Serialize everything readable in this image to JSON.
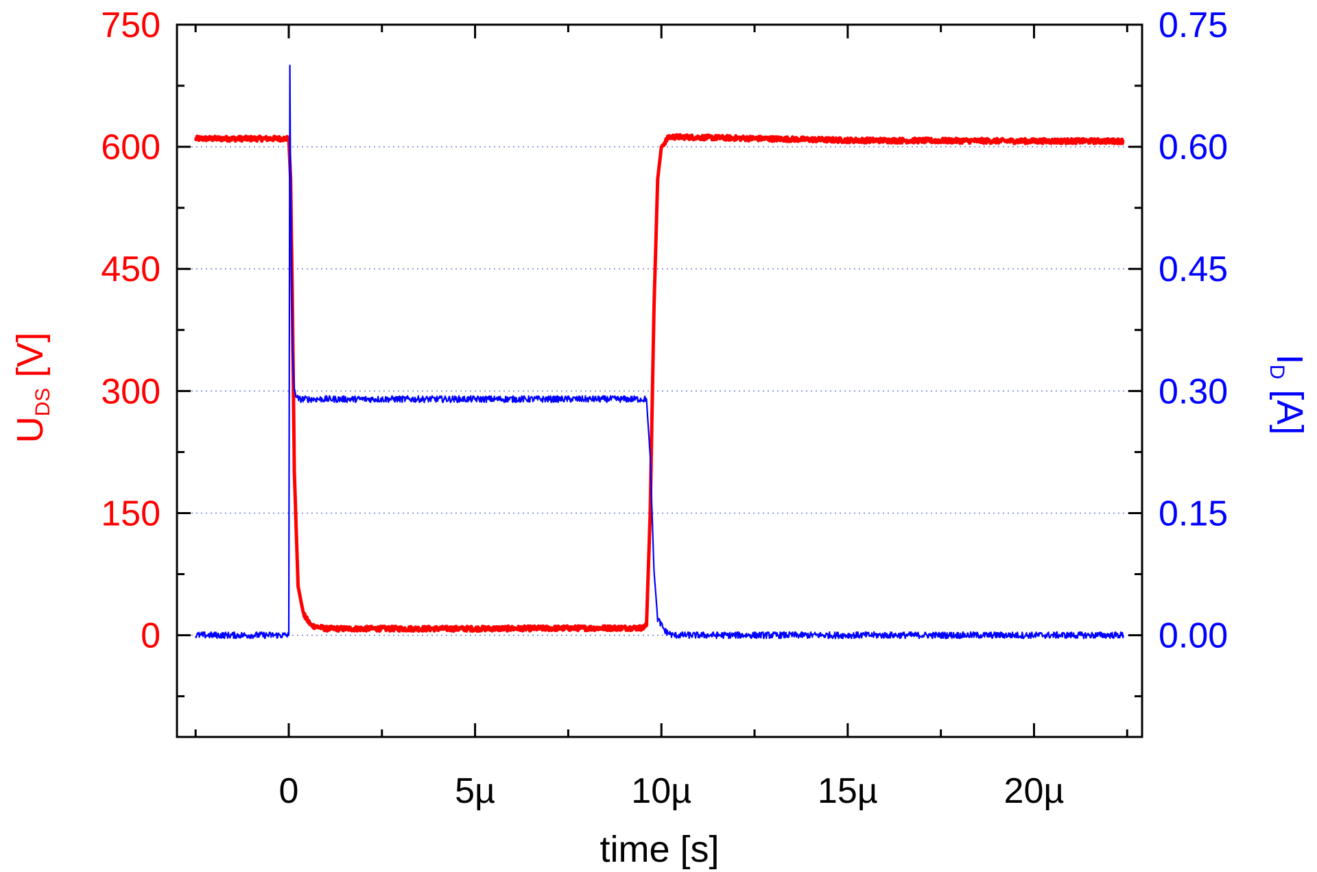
{
  "chart_data": {
    "type": "line",
    "title": "",
    "xlabel": "time [s]",
    "ylabel_left": {
      "main": "U",
      "sub": "DS",
      "unit": " [V]"
    },
    "ylabel_right": {
      "main": "I",
      "sub": "D",
      "unit": " [A]"
    },
    "xlim": [
      -3e-06,
      2.29e-05
    ],
    "ylim_left": [
      -125,
      750
    ],
    "ylim_right": [
      -0.125,
      0.75
    ],
    "x_ticks": [
      {
        "value": 0,
        "label": "0"
      },
      {
        "value": 5e-06,
        "label": "5µ"
      },
      {
        "value": 1e-05,
        "label": "10µ"
      },
      {
        "value": 1.5e-05,
        "label": "15µ"
      },
      {
        "value": 2e-05,
        "label": "20µ"
      }
    ],
    "y_ticks_left": [
      {
        "value": 0,
        "label": "0"
      },
      {
        "value": 150,
        "label": "150"
      },
      {
        "value": 300,
        "label": "300"
      },
      {
        "value": 450,
        "label": "450"
      },
      {
        "value": 600,
        "label": "600"
      },
      {
        "value": 750,
        "label": "750"
      }
    ],
    "y_ticks_right": [
      {
        "value": 0,
        "label": "0.00"
      },
      {
        "value": 0.15,
        "label": "0.15"
      },
      {
        "value": 0.3,
        "label": "0.30"
      },
      {
        "value": 0.45,
        "label": "0.45"
      },
      {
        "value": 0.6,
        "label": "0.60"
      },
      {
        "value": 0.75,
        "label": "0.75"
      }
    ],
    "grid": {
      "horizontal": true,
      "vertical": false,
      "style": "dotted"
    },
    "series": [
      {
        "axis": "left",
        "color": "#ff0000",
        "x": [
          -2.5e-06,
          -1e-06,
          0.0,
          5e-08,
          1e-07,
          1.5e-07,
          2.5e-07,
          4e-07,
          6e-07,
          1e-06,
          5e-06,
          9.5e-06,
          9.6e-06,
          9.7e-06,
          9.8e-06,
          9.9e-06,
          1e-05,
          1.02e-05,
          1.05e-05,
          1.5e-05,
          2e-05,
          2.24e-05
        ],
        "values": [
          610,
          610,
          610,
          560,
          400,
          200,
          60,
          25,
          12,
          8,
          8,
          9,
          12,
          150,
          400,
          560,
          600,
          612,
          612,
          608,
          607,
          607
        ]
      },
      {
        "axis": "right",
        "color": "#0000ff",
        "x": [
          -2.5e-06,
          -1e-07,
          0.0,
          3e-08,
          5e-08,
          1e-07,
          1.5e-07,
          2.5e-07,
          5e-07,
          5e-06,
          9.5e-06,
          9.6e-06,
          9.7e-06,
          9.8e-06,
          9.9e-06,
          1.01e-05,
          1.03e-05,
          1.5e-05,
          2e-05,
          2.24e-05
        ],
        "values": [
          0.0,
          0.0,
          0.0,
          0.7,
          0.55,
          0.35,
          0.3,
          0.29,
          0.29,
          0.29,
          0.29,
          0.29,
          0.22,
          0.08,
          0.02,
          0.005,
          0.0,
          0.0,
          0.0,
          0.0
        ]
      }
    ]
  }
}
